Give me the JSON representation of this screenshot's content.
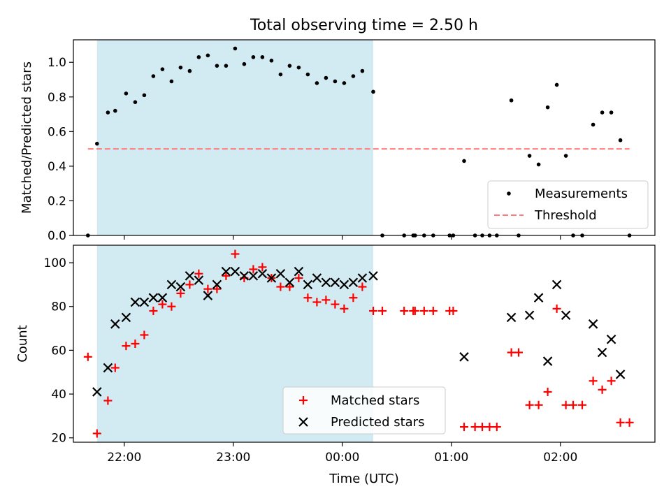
{
  "figure": {
    "title": "Total observing time = 2.50 h",
    "xlabel": "Time (UTC)",
    "shade_color": "#add8e6",
    "x_tick_labels": [
      "22:00",
      "23:00",
      "00:00",
      "01:00",
      "02:00"
    ]
  },
  "chart_data": [
    {
      "type": "scatter",
      "ylabel": "Matched/Predicted stars",
      "xlim": [
        "21:32",
        "02:52"
      ],
      "ylim": [
        0,
        1.13
      ],
      "y_ticks": [
        "0.0",
        "0.2",
        "0.4",
        "0.6",
        "0.8",
        "1.0"
      ],
      "shaded_interval": [
        "21:45",
        "00:17"
      ],
      "legend_position": "lower right",
      "series": [
        {
          "name": "Measurements",
          "marker": "dot",
          "color": "#000000",
          "points": [
            [
              "21:40",
              0.0
            ],
            [
              "21:45",
              0.53
            ],
            [
              "21:51",
              0.71
            ],
            [
              "21:55",
              0.72
            ],
            [
              "22:01",
              0.82
            ],
            [
              "22:06",
              0.77
            ],
            [
              "22:11",
              0.81
            ],
            [
              "22:16",
              0.92
            ],
            [
              "22:21",
              0.96
            ],
            [
              "22:26",
              0.89
            ],
            [
              "22:31",
              0.97
            ],
            [
              "22:36",
              0.95
            ],
            [
              "22:41",
              1.03
            ],
            [
              "22:46",
              1.04
            ],
            [
              "22:51",
              0.98
            ],
            [
              "22:56",
              0.98
            ],
            [
              "23:01",
              1.08
            ],
            [
              "23:06",
              0.99
            ],
            [
              "23:11",
              1.03
            ],
            [
              "23:16",
              1.03
            ],
            [
              "23:21",
              1.01
            ],
            [
              "23:26",
              0.93
            ],
            [
              "23:31",
              0.98
            ],
            [
              "23:36",
              0.97
            ],
            [
              "23:41",
              0.93
            ],
            [
              "23:46",
              0.88
            ],
            [
              "23:51",
              0.91
            ],
            [
              "23:56",
              0.89
            ],
            [
              "00:01",
              0.88
            ],
            [
              "00:06",
              0.92
            ],
            [
              "00:11",
              0.95
            ],
            [
              "00:17",
              0.83
            ],
            [
              "00:22",
              0.0
            ],
            [
              "00:34",
              0.0
            ],
            [
              "00:39",
              0.0
            ],
            [
              "00:40",
              0.0
            ],
            [
              "00:45",
              0.0
            ],
            [
              "00:50",
              0.0
            ],
            [
              "00:59",
              0.0
            ],
            [
              "01:01",
              0.0
            ],
            [
              "01:07",
              0.43
            ],
            [
              "01:13",
              0.0
            ],
            [
              "01:17",
              0.0
            ],
            [
              "01:21",
              0.0
            ],
            [
              "01:25",
              0.0
            ],
            [
              "01:33",
              0.78
            ],
            [
              "01:37",
              0.0
            ],
            [
              "01:43",
              0.46
            ],
            [
              "01:48",
              0.41
            ],
            [
              "01:53",
              0.74
            ],
            [
              "01:58",
              0.87
            ],
            [
              "02:03",
              0.46
            ],
            [
              "02:07",
              0.0
            ],
            [
              "02:12",
              0.0
            ],
            [
              "02:18",
              0.64
            ],
            [
              "02:23",
              0.71
            ],
            [
              "02:28",
              0.71
            ],
            [
              "02:33",
              0.55
            ],
            [
              "02:38",
              0.0
            ]
          ]
        },
        {
          "name": "Threshold",
          "marker": "dashed-line",
          "color": "#ff7a7a",
          "points": [
            [
              "21:40",
              0.5
            ],
            [
              "02:38",
              0.5
            ]
          ]
        }
      ]
    },
    {
      "type": "scatter",
      "ylabel": "Count",
      "xlim": [
        "21:32",
        "02:52"
      ],
      "ylim": [
        18,
        108
      ],
      "y_ticks": [
        "20",
        "40",
        "60",
        "80",
        "100"
      ],
      "shaded_interval": [
        "21:45",
        "00:17"
      ],
      "legend_position": "lower center",
      "series": [
        {
          "name": "Matched stars",
          "marker": "plus",
          "color": "#ff0000",
          "points": [
            [
              "21:40",
              57
            ],
            [
              "21:45",
              22
            ],
            [
              "21:51",
              37
            ],
            [
              "21:55",
              52
            ],
            [
              "22:01",
              62
            ],
            [
              "22:06",
              63
            ],
            [
              "22:11",
              67
            ],
            [
              "22:16",
              78
            ],
            [
              "22:21",
              81
            ],
            [
              "22:26",
              80
            ],
            [
              "22:31",
              86
            ],
            [
              "22:36",
              90
            ],
            [
              "22:41",
              95
            ],
            [
              "22:46",
              88
            ],
            [
              "22:51",
              88
            ],
            [
              "22:56",
              94
            ],
            [
              "23:01",
              104
            ],
            [
              "23:06",
              93
            ],
            [
              "23:11",
              97
            ],
            [
              "23:16",
              98
            ],
            [
              "23:21",
              93
            ],
            [
              "23:26",
              89
            ],
            [
              "23:31",
              89
            ],
            [
              "23:36",
              93
            ],
            [
              "23:41",
              84
            ],
            [
              "23:46",
              82
            ],
            [
              "23:51",
              83
            ],
            [
              "23:56",
              81
            ],
            [
              "00:01",
              79
            ],
            [
              "00:06",
              84
            ],
            [
              "00:11",
              89
            ],
            [
              "00:17",
              78
            ],
            [
              "00:22",
              78
            ],
            [
              "00:34",
              78
            ],
            [
              "00:39",
              78
            ],
            [
              "00:40",
              78
            ],
            [
              "00:45",
              78
            ],
            [
              "00:50",
              78
            ],
            [
              "00:59",
              78
            ],
            [
              "01:01",
              78
            ],
            [
              "01:07",
              25
            ],
            [
              "01:13",
              25
            ],
            [
              "01:17",
              25
            ],
            [
              "01:21",
              25
            ],
            [
              "01:25",
              25
            ],
            [
              "01:33",
              59
            ],
            [
              "01:37",
              59
            ],
            [
              "01:43",
              35
            ],
            [
              "01:48",
              35
            ],
            [
              "01:53",
              41
            ],
            [
              "01:58",
              79
            ],
            [
              "02:03",
              35
            ],
            [
              "02:07",
              35
            ],
            [
              "02:12",
              35
            ],
            [
              "02:18",
              46
            ],
            [
              "02:23",
              42
            ],
            [
              "02:28",
              46
            ],
            [
              "02:33",
              27
            ],
            [
              "02:38",
              27
            ]
          ]
        },
        {
          "name": "Predicted stars",
          "marker": "x",
          "color": "#000000",
          "points": [
            [
              "21:45",
              41
            ],
            [
              "21:51",
              52
            ],
            [
              "21:55",
              72
            ],
            [
              "22:01",
              75
            ],
            [
              "22:06",
              82
            ],
            [
              "22:11",
              82
            ],
            [
              "22:16",
              84
            ],
            [
              "22:21",
              84
            ],
            [
              "22:26",
              90
            ],
            [
              "22:31",
              89
            ],
            [
              "22:36",
              94
            ],
            [
              "22:41",
              92
            ],
            [
              "22:46",
              85
            ],
            [
              "22:51",
              90
            ],
            [
              "22:56",
              96
            ],
            [
              "23:01",
              96
            ],
            [
              "23:06",
              94
            ],
            [
              "23:11",
              94
            ],
            [
              "23:16",
              95
            ],
            [
              "23:21",
              93
            ],
            [
              "23:26",
              95
            ],
            [
              "23:31",
              91
            ],
            [
              "23:36",
              96
            ],
            [
              "23:41",
              90
            ],
            [
              "23:46",
              93
            ],
            [
              "23:51",
              91
            ],
            [
              "23:56",
              91
            ],
            [
              "00:01",
              90
            ],
            [
              "00:06",
              91
            ],
            [
              "00:11",
              93
            ],
            [
              "00:17",
              94
            ],
            [
              "01:07",
              57
            ],
            [
              "01:33",
              75
            ],
            [
              "01:43",
              76
            ],
            [
              "01:48",
              84
            ],
            [
              "01:53",
              55
            ],
            [
              "01:58",
              90
            ],
            [
              "02:03",
              76
            ],
            [
              "02:18",
              72
            ],
            [
              "02:23",
              59
            ],
            [
              "02:28",
              65
            ],
            [
              "02:33",
              49
            ]
          ]
        }
      ]
    }
  ]
}
